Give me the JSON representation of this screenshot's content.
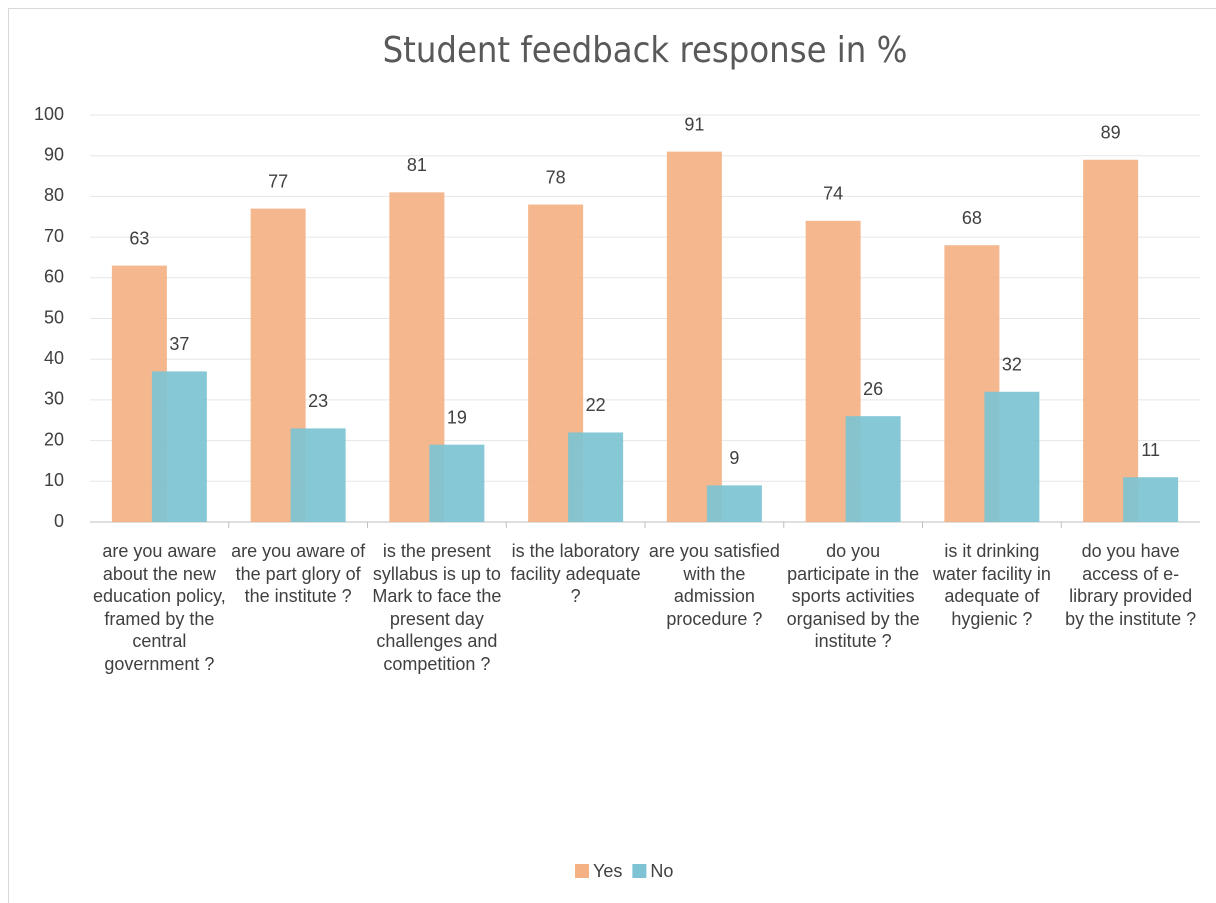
{
  "chart_data": {
    "type": "bar",
    "title": "Student feedback response in %",
    "categories": [
      "are you aware about the new education policy, framed by the central government ?",
      "are you aware of the part glory of the institute ?",
      "is the present syllabus is up to Mark to face the present day challenges and competition ?",
      "is the laboratory facility adequate ?",
      "are you satisfied with the admission procedure ?",
      "do you participate in the sports activities organised by the institute ?",
      "is it drinking water facility in adequate of hygienic ?",
      "do you have access of e-library provided by the institute ?"
    ],
    "series": [
      {
        "name": "Yes",
        "color": "#f4b183",
        "values": [
          63,
          77,
          81,
          78,
          91,
          74,
          68,
          89
        ]
      },
      {
        "name": "No",
        "color": "#7dc3d3",
        "values": [
          37,
          23,
          19,
          22,
          9,
          26,
          32,
          11
        ]
      }
    ],
    "ylim": [
      0,
      100
    ],
    "yticks": [
      0,
      10,
      20,
      30,
      40,
      50,
      60,
      70,
      80,
      90,
      100
    ],
    "grid": true,
    "legend": "bottom"
  }
}
